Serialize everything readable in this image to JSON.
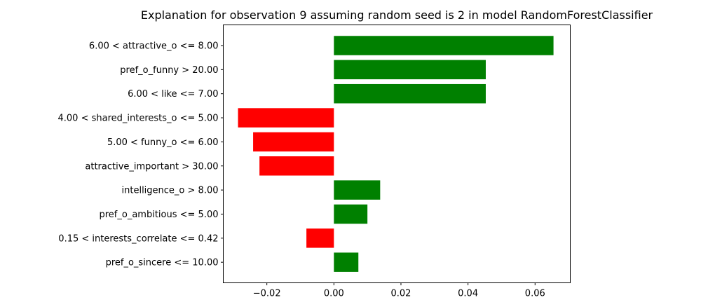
{
  "chart_data": {
    "type": "bar",
    "orientation": "horizontal",
    "title": "Explanation for observation 9 assuming random seed is 2 in model RandomForestClassifier",
    "xlabel": "",
    "ylabel": "",
    "xlim": [
      -0.033,
      0.0705
    ],
    "categories": [
      "6.00 < attractive_o <= 8.00",
      "pref_o_funny > 20.00",
      "6.00 < like <= 7.00",
      "4.00 < shared_interests_o <= 5.00",
      "5.00 < funny_o <= 6.00",
      "attractive_important > 30.00",
      "intelligence_o > 8.00",
      "pref_o_ambitious <= 5.00",
      "0.15 < interests_correlate <= 0.42",
      "pref_o_sincere <= 10.00"
    ],
    "values": [
      0.0655,
      0.0453,
      0.0453,
      -0.0286,
      -0.0241,
      -0.0222,
      0.0138,
      0.01,
      -0.0082,
      0.0073
    ],
    "x_ticks": [
      -0.02,
      0.0,
      0.02,
      0.04,
      0.06
    ],
    "x_tick_labels": [
      "−0.02",
      "0.00",
      "0.02",
      "0.04",
      "0.06"
    ],
    "grid": false,
    "colors": {
      "positive": "#008000",
      "negative": "#ff0000"
    }
  }
}
